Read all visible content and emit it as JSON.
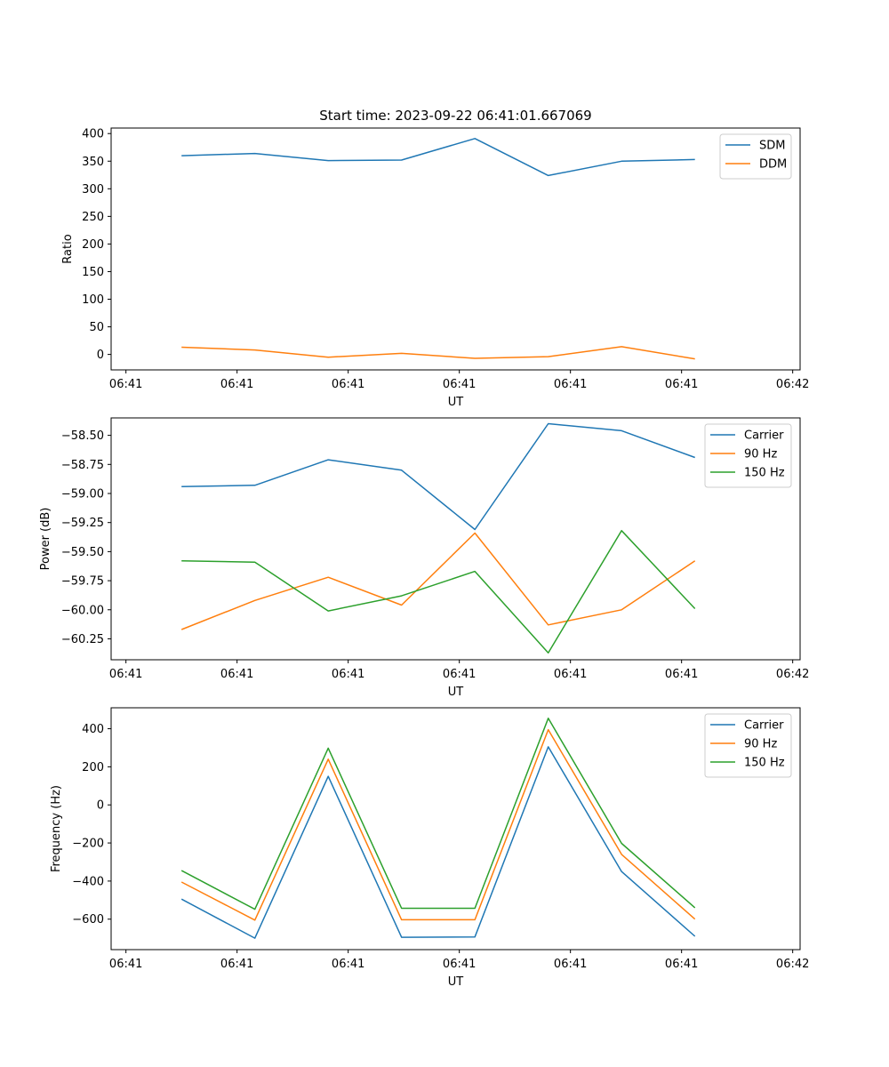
{
  "chart_data": [
    {
      "type": "line",
      "title": "Start time: 2023-09-22 06:41:01.667069",
      "xlabel": "UT",
      "ylabel": "Ratio",
      "xlim": [
        -0.2,
        9.1
      ],
      "ylim": [
        -28,
        410
      ],
      "x_ticks": [
        0,
        1.5,
        3,
        4.5,
        6,
        7.5,
        9
      ],
      "x_tick_labels": [
        "06:41",
        "06:41",
        "06:41",
        "06:41",
        "06:41",
        "06:41",
        "06:42"
      ],
      "y_ticks": [
        0,
        50,
        100,
        150,
        200,
        250,
        300,
        350,
        400
      ],
      "y_tick_labels": [
        "0",
        "50",
        "100",
        "150",
        "200",
        "250",
        "300",
        "350",
        "400"
      ],
      "x": [
        0.75,
        1.74,
        2.73,
        3.72,
        4.71,
        5.7,
        6.69,
        7.68
      ],
      "series": [
        {
          "name": "SDM",
          "color": "#1f77b4",
          "values": [
            360,
            364,
            351,
            352,
            391,
            324,
            350,
            353
          ]
        },
        {
          "name": "DDM",
          "color": "#ff7f0e",
          "values": [
            13,
            8,
            -5,
            2,
            -7,
            -4,
            14,
            -8
          ]
        }
      ],
      "legend": "top-right"
    },
    {
      "type": "line",
      "title": "",
      "xlabel": "UT",
      "ylabel": "Power (dB)",
      "xlim": [
        -0.2,
        9.1
      ],
      "ylim": [
        -60.43,
        -58.35
      ],
      "x_ticks": [
        0,
        1.5,
        3,
        4.5,
        6,
        7.5,
        9
      ],
      "x_tick_labels": [
        "06:41",
        "06:41",
        "06:41",
        "06:41",
        "06:41",
        "06:41",
        "06:42"
      ],
      "y_ticks": [
        -60.25,
        -60.0,
        -59.75,
        -59.5,
        -59.25,
        -59.0,
        -58.75,
        -58.5
      ],
      "y_tick_labels": [
        "−60.25",
        "−60.00",
        "−59.75",
        "−59.50",
        "−59.25",
        "−59.00",
        "−58.75",
        "−58.50"
      ],
      "x": [
        0.75,
        1.74,
        2.73,
        3.72,
        4.71,
        5.7,
        6.69,
        7.68
      ],
      "series": [
        {
          "name": "Carrier",
          "color": "#1f77b4",
          "values": [
            -58.94,
            -58.93,
            -58.71,
            -58.8,
            -59.31,
            -58.4,
            -58.46,
            -58.69
          ]
        },
        {
          "name": "90 Hz",
          "color": "#ff7f0e",
          "values": [
            -60.17,
            -59.92,
            -59.72,
            -59.96,
            -59.34,
            -60.13,
            -60.0,
            -59.58
          ]
        },
        {
          "name": "150 Hz",
          "color": "#2ca02c",
          "values": [
            -59.58,
            -59.59,
            -60.01,
            -59.88,
            -59.67,
            -60.37,
            -59.32,
            -59.99
          ]
        }
      ],
      "legend": "top-right"
    },
    {
      "type": "line",
      "title": "",
      "xlabel": "UT",
      "ylabel": "Frequency (Hz)",
      "xlim": [
        -0.2,
        9.1
      ],
      "ylim": [
        -760,
        510
      ],
      "x_ticks": [
        0,
        1.5,
        3,
        4.5,
        6,
        7.5,
        9
      ],
      "x_tick_labels": [
        "06:41",
        "06:41",
        "06:41",
        "06:41",
        "06:41",
        "06:41",
        "06:42"
      ],
      "y_ticks": [
        -600,
        -400,
        -200,
        0,
        200,
        400
      ],
      "y_tick_labels": [
        "−600",
        "−400",
        "−200",
        "0",
        "200",
        "400"
      ],
      "x": [
        0.75,
        1.74,
        2.73,
        3.72,
        4.71,
        5.7,
        6.69,
        7.68
      ],
      "series": [
        {
          "name": "Carrier",
          "color": "#1f77b4",
          "values": [
            -495,
            -700,
            150,
            -695,
            -693,
            305,
            -350,
            -690
          ]
        },
        {
          "name": "90 Hz",
          "color": "#ff7f0e",
          "values": [
            -405,
            -605,
            240,
            -603,
            -603,
            395,
            -260,
            -600
          ]
        },
        {
          "name": "150 Hz",
          "color": "#2ca02c",
          "values": [
            -345,
            -548,
            298,
            -543,
            -543,
            455,
            -202,
            -540
          ]
        }
      ],
      "legend": "top-right"
    }
  ]
}
